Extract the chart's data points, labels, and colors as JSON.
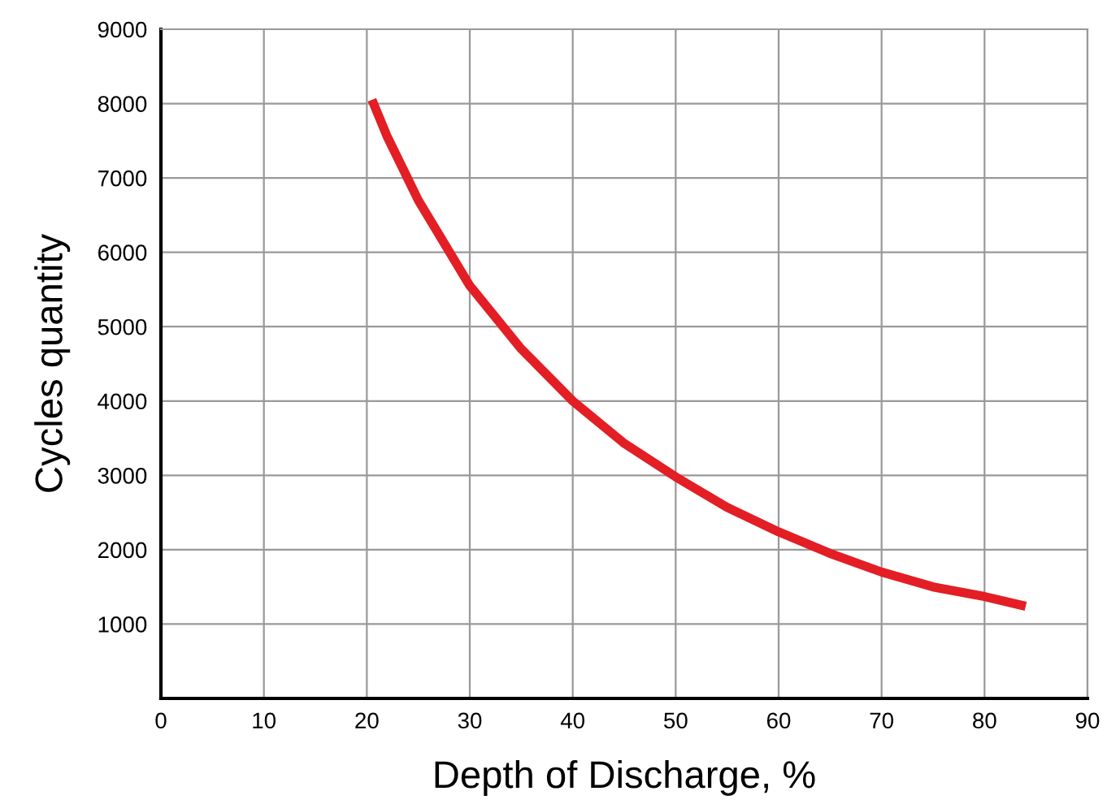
{
  "chart_data": {
    "type": "line",
    "xlabel": "Depth of Discharge, %",
    "ylabel": "Cycles quantity",
    "series": [
      {
        "color": "#e31e25",
        "x": [
          20.5,
          22,
          25,
          30,
          35,
          40,
          45,
          50,
          55,
          60,
          65,
          70,
          75,
          80,
          84
        ],
        "values": [
          8050,
          7550,
          6700,
          5550,
          4700,
          4000,
          3430,
          2980,
          2570,
          2240,
          1950,
          1700,
          1500,
          1370,
          1240
        ]
      }
    ],
    "xlim": [
      0,
      90
    ],
    "xticks": [
      0,
      10,
      20,
      30,
      40,
      50,
      60,
      70,
      80,
      90
    ],
    "ylim": [
      0,
      9000
    ],
    "yticks": [
      {
        "value": 0,
        "label": null
      },
      1000,
      2000,
      3000,
      4000,
      5000,
      6000,
      7000,
      8000,
      9000
    ],
    "grid": true,
    "marker": "none",
    "line_style": "solid"
  }
}
